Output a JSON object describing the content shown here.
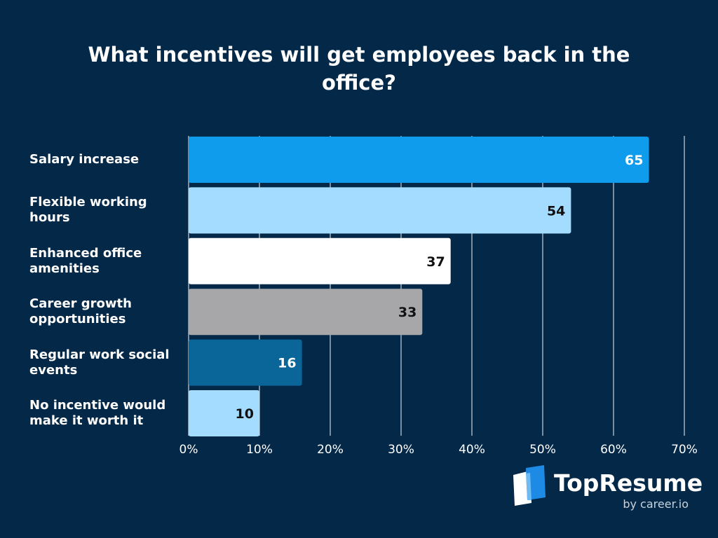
{
  "chart_data": {
    "type": "bar",
    "orientation": "horizontal",
    "title": "What incentives will get employees back in the office?",
    "categories": [
      "Salary increase",
      "Flexible working hours",
      "Enhanced office amenities",
      "Career growth opportunities",
      "Regular work social events",
      "No incentive would make it worth it"
    ],
    "category_lines": [
      [
        "Salary increase"
      ],
      [
        "Flexible working",
        "hours"
      ],
      [
        "Enhanced office",
        "amenities"
      ],
      [
        "Career growth",
        "opportunities"
      ],
      [
        "Regular work social",
        "events"
      ],
      [
        "No incentive would",
        "make it worth it"
      ]
    ],
    "values": [
      65,
      54,
      37,
      33,
      16,
      10
    ],
    "data_labels": [
      "65",
      "54",
      "37",
      "33",
      "16",
      "10"
    ],
    "bar_colors": [
      "#0f9cec",
      "#a4dcff",
      "#ffffff",
      "#a7a7a9",
      "#0a6698",
      "#a4dcff"
    ],
    "label_colors": [
      "#ffffff",
      "#111111",
      "#111111",
      "#111111",
      "#ffffff",
      "#111111"
    ],
    "xlim": [
      0,
      70
    ],
    "xticks": [
      0,
      10,
      20,
      30,
      40,
      50,
      60,
      70
    ],
    "xtick_labels": [
      "0%",
      "10%",
      "20%",
      "30%",
      "40%",
      "50%",
      "60%",
      "70%"
    ],
    "grid": true,
    "xlabel": "",
    "ylabel": ""
  },
  "logo": {
    "brand": "TopResume",
    "tagline": "by career.io"
  },
  "colors": {
    "background": "#042847",
    "grid": "#c8d2dc",
    "text": "#ffffff",
    "logo_light": "#ffffff",
    "logo_blue": "#1d8be6"
  }
}
